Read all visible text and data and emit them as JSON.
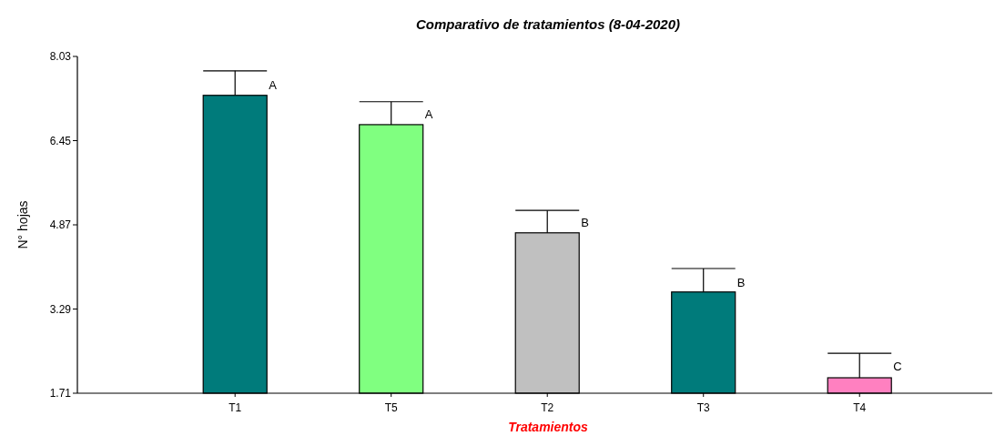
{
  "chart_data": {
    "type": "bar",
    "title": "Comparativo de tratamientos (8-04-2020)",
    "xlabel": "Tratamientos",
    "ylabel": "N° hojas",
    "categories": [
      "T1",
      "T5",
      "T2",
      "T3",
      "T4"
    ],
    "values": [
      7.3,
      6.75,
      4.72,
      3.61,
      2.0
    ],
    "colors": [
      "#007b7b",
      "#80ff80",
      "#c0c0c0",
      "#007b7b",
      "#ff80c0"
    ],
    "errors": [
      [
        7.3,
        7.76
      ],
      [
        6.75,
        7.18
      ],
      [
        4.72,
        5.14
      ],
      [
        3.61,
        4.05
      ],
      [
        2.0,
        2.46
      ]
    ],
    "ylim": [
      1.71,
      8.03
    ],
    "yticks": [
      1.71,
      3.29,
      4.87,
      6.45,
      8.03
    ],
    "annotations": [
      {
        "text": "A",
        "x": "T1",
        "y": 7.5
      },
      {
        "text": "A",
        "x": "T5",
        "y": 6.95
      },
      {
        "text": "B",
        "x": "T2",
        "y": 4.92
      },
      {
        "text": "B",
        "x": "T3",
        "y": 3.79
      },
      {
        "text": "C",
        "x": "T4",
        "y": 2.21
      }
    ]
  }
}
